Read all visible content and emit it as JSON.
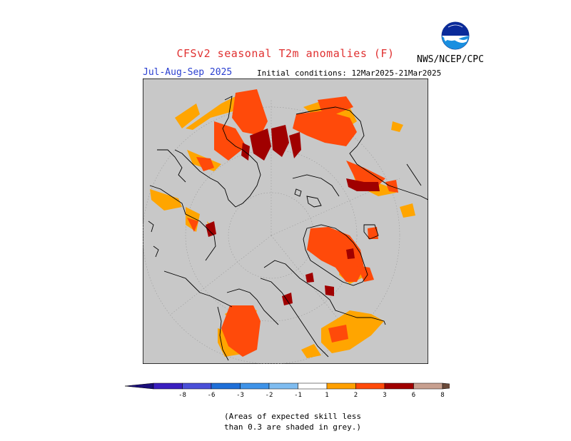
{
  "header": {
    "title": "CFSv2 seasonal T2m anomalies (F)",
    "season": "Jul-Aug-Sep 2025",
    "initial_conditions": "Initial conditions: 12Mar2025-21Mar2025",
    "organization": "NWS/NCEP/CPC",
    "logo_text": "NOAA"
  },
  "legend": {
    "bins": [
      {
        "label": "-8",
        "color": "#3a1fbf"
      },
      {
        "label": "-6",
        "color": "#4a4fd8"
      },
      {
        "label": "-3",
        "color": "#1f6fd8"
      },
      {
        "label": "-2",
        "color": "#3f93e8"
      },
      {
        "label": "-1",
        "color": "#7fbcf0"
      },
      {
        "label": "1",
        "color": "#ffffff"
      },
      {
        "label": "2",
        "color": "#ffa000"
      },
      {
        "label": "3",
        "color": "#ff4a0a"
      },
      {
        "label": "6",
        "color": "#a00000"
      },
      {
        "label": "8",
        "color": "#c8a090"
      }
    ],
    "low_end_color": "#1a0e7a",
    "high_end_color": "#6a4a3a"
  },
  "map": {
    "projection": "north polar stereographic",
    "grey_mask_color": "#c8c8c8",
    "palette": {
      "plus1_2": "#ffa500",
      "plus2_3": "#ff4a0a",
      "plus3_6": "#a00000"
    }
  },
  "footnote": {
    "line1": "(Areas of expected skill less",
    "line2": "than 0.3 are shaded in grey.)"
  }
}
